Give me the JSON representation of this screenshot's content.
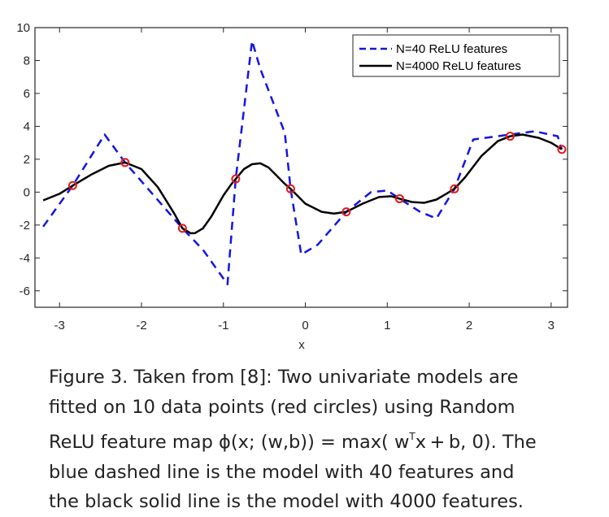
{
  "chart_data": {
    "type": "line",
    "xlabel": "x",
    "ylabel": "",
    "xlim": [
      -3.3,
      3.2
    ],
    "ylim": [
      -7,
      10
    ],
    "x_ticks": [
      -3,
      -2,
      -1,
      0,
      1,
      2,
      3
    ],
    "y_ticks": [
      -6,
      -4,
      -2,
      0,
      2,
      4,
      6,
      8,
      10
    ],
    "grid": false,
    "legend_position": "top-right",
    "series": [
      {
        "name": "N=40 ReLU features",
        "style": "dashed",
        "color": "#1414e6",
        "x": [
          -3.2,
          -2.84,
          -2.45,
          -2.2,
          -1.85,
          -1.5,
          -1.25,
          -0.95,
          -0.85,
          -0.65,
          -0.55,
          -0.25,
          -0.18,
          -0.05,
          0.15,
          0.5,
          0.8,
          1.0,
          1.15,
          1.4,
          1.6,
          1.82,
          2.05,
          2.5,
          2.8,
          3.08,
          3.13
        ],
        "y": [
          -2.1,
          0.4,
          3.5,
          1.8,
          -0.2,
          -2.2,
          -3.5,
          -5.6,
          0.8,
          9.2,
          7.5,
          3.6,
          0.2,
          -3.8,
          -3.2,
          -1.2,
          0.0,
          0.1,
          -0.4,
          -1.2,
          -1.6,
          0.2,
          3.2,
          3.5,
          3.7,
          3.4,
          2.6
        ]
      },
      {
        "name": "N=4000 ReLU features",
        "style": "solid",
        "color": "#000000",
        "x": [
          -3.2,
          -3.0,
          -2.84,
          -2.6,
          -2.4,
          -2.2,
          -2.0,
          -1.8,
          -1.6,
          -1.5,
          -1.4,
          -1.35,
          -1.25,
          -1.15,
          -1.0,
          -0.9,
          -0.85,
          -0.75,
          -0.65,
          -0.55,
          -0.45,
          -0.35,
          -0.25,
          -0.18,
          -0.1,
          0.0,
          0.2,
          0.35,
          0.5,
          0.7,
          0.9,
          1.05,
          1.15,
          1.3,
          1.45,
          1.6,
          1.72,
          1.82,
          1.95,
          2.15,
          2.35,
          2.5,
          2.65,
          2.85,
          3.0,
          3.13
        ],
        "y": [
          -0.5,
          -0.1,
          0.4,
          1.1,
          1.6,
          1.8,
          1.4,
          0.3,
          -1.3,
          -2.2,
          -2.5,
          -2.5,
          -2.2,
          -1.5,
          -0.2,
          0.5,
          0.8,
          1.4,
          1.7,
          1.75,
          1.5,
          1.0,
          0.5,
          0.2,
          -0.2,
          -0.7,
          -1.2,
          -1.3,
          -1.2,
          -0.7,
          -0.3,
          -0.25,
          -0.4,
          -0.6,
          -0.65,
          -0.45,
          -0.1,
          0.2,
          0.9,
          2.2,
          3.1,
          3.4,
          3.5,
          3.3,
          3.0,
          2.6
        ]
      }
    ],
    "points": {
      "label": "data points",
      "color": "#e41a1c",
      "x": [
        -2.84,
        -2.2,
        -1.5,
        -0.85,
        -0.18,
        0.5,
        1.15,
        1.82,
        2.5,
        3.13
      ],
      "y": [
        0.4,
        1.8,
        -2.2,
        0.8,
        0.2,
        -1.2,
        -0.4,
        0.2,
        3.4,
        2.6
      ]
    }
  },
  "caption": {
    "line1": "Figure 3. Taken from [8]: Two univariate models are",
    "line2": "fitted on 10 data points (red circles) using Random",
    "line3a": "ReLU feature map ϕ(x; (w,b)) = max( w",
    "line3sup": "T",
    "line3b": "x + b, 0). The",
    "line4": "blue dashed line is the model with 40 features and",
    "line5": "the black solid line is the model with 4000 features."
  }
}
